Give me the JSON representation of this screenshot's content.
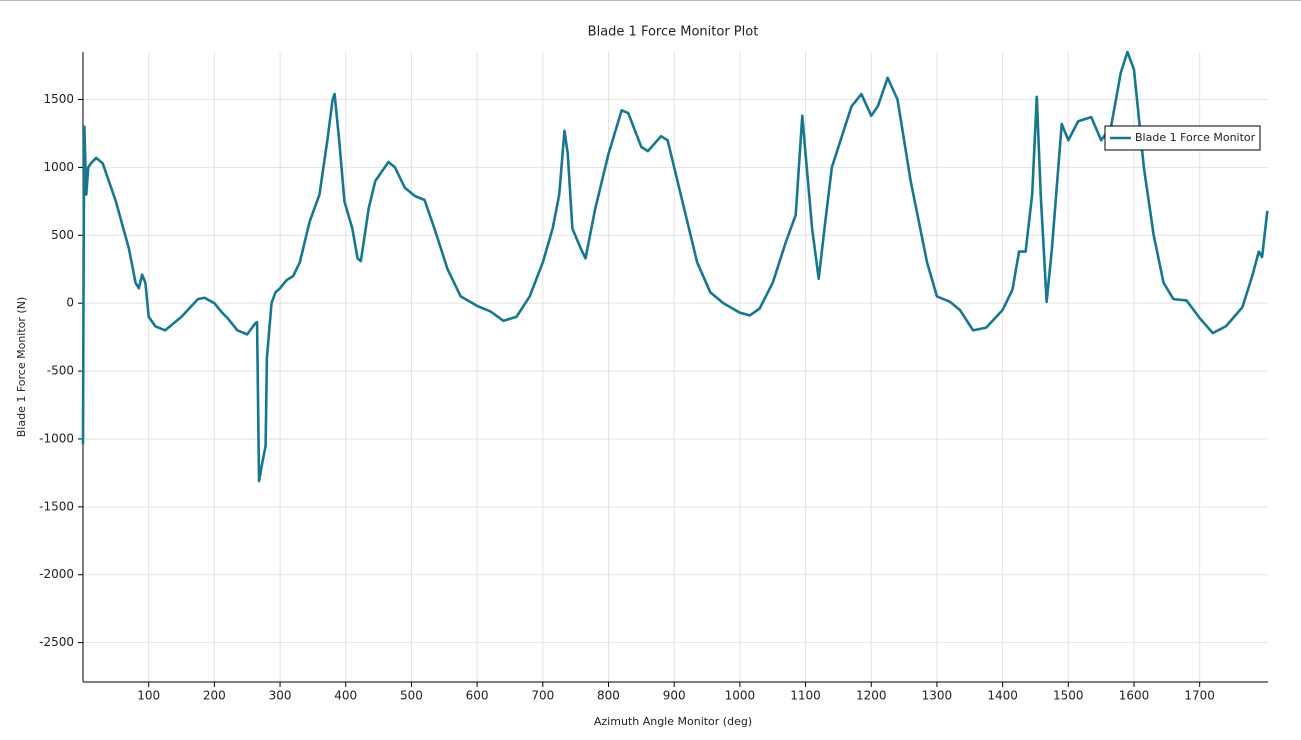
{
  "chart_data": {
    "type": "line",
    "title": "Blade 1 Force Monitor Plot",
    "x_label": "Azimuth Angle Monitor (deg)",
    "y_label": "Blade 1 Force Monitor (N)",
    "x": [
      0,
      1,
      2,
      5,
      8,
      12,
      20,
      30,
      50,
      70,
      80,
      85,
      90,
      95,
      100,
      110,
      125,
      150,
      175,
      185,
      200,
      210,
      220,
      235,
      250,
      262,
      265,
      268,
      272,
      278,
      280,
      287,
      293,
      300,
      310,
      320,
      330,
      345,
      360,
      372,
      380,
      383,
      390,
      398,
      410,
      418,
      423,
      435,
      445,
      465,
      475,
      490,
      505,
      520,
      535,
      555,
      575,
      600,
      620,
      640,
      660,
      680,
      700,
      715,
      725,
      733,
      738,
      745,
      758,
      765,
      780,
      800,
      820,
      830,
      850,
      860,
      880,
      890,
      910,
      935,
      955,
      975,
      1000,
      1015,
      1030,
      1050,
      1070,
      1085,
      1095,
      1100,
      1110,
      1120,
      1130,
      1140,
      1150,
      1170,
      1185,
      1200,
      1210,
      1225,
      1240,
      1260,
      1285,
      1300,
      1320,
      1335,
      1355,
      1375,
      1400,
      1415,
      1425,
      1435,
      1445,
      1452,
      1458,
      1467,
      1475,
      1490,
      1500,
      1515,
      1535,
      1550,
      1565,
      1580,
      1590,
      1600,
      1615,
      1630,
      1645,
      1660,
      1680,
      1700,
      1720,
      1740,
      1765,
      1780,
      1790,
      1795,
      1803
    ],
    "series": [
      {
        "name": "Blade 1 Force Monitor",
        "color": "#16778f",
        "values": [
          -1040,
          440,
          1300,
          800,
          1000,
          1030,
          1070,
          1030,
          750,
          400,
          150,
          110,
          210,
          150,
          -100,
          -170,
          -200,
          -100,
          30,
          40,
          0,
          -60,
          -110,
          -200,
          -230,
          -150,
          -140,
          -1310,
          -1200,
          -1050,
          -400,
          0,
          80,
          110,
          170,
          200,
          300,
          600,
          800,
          1200,
          1500,
          1540,
          1200,
          750,
          550,
          330,
          310,
          700,
          900,
          1040,
          1000,
          850,
          790,
          760,
          550,
          250,
          50,
          -20,
          -60,
          -130,
          -100,
          50,
          300,
          550,
          800,
          1270,
          1100,
          550,
          400,
          330,
          700,
          1100,
          1420,
          1400,
          1150,
          1120,
          1230,
          1200,
          800,
          300,
          80,
          0,
          -70,
          -90,
          -40,
          150,
          450,
          650,
          1380,
          1100,
          550,
          180,
          600,
          1000,
          1150,
          1450,
          1540,
          1380,
          1450,
          1660,
          1500,
          900,
          300,
          50,
          10,
          -50,
          -200,
          -180,
          -50,
          100,
          380,
          380,
          800,
          1520,
          800,
          10,
          400,
          1320,
          1200,
          1340,
          1370,
          1200,
          1300,
          1700,
          1850,
          1720,
          1000,
          500,
          150,
          30,
          20,
          -110,
          -220,
          -170,
          -30,
          200,
          380,
          340,
          680
        ]
      }
    ],
    "xlim": [
      0,
      1804
    ],
    "ylim": [
      -2790,
      1850
    ],
    "xticks": [
      100,
      200,
      300,
      400,
      500,
      600,
      700,
      800,
      900,
      1000,
      1100,
      1200,
      1300,
      1400,
      1500,
      1600,
      1700
    ],
    "yticks": [
      -2500,
      -2000,
      -1500,
      -1000,
      -500,
      0,
      500,
      1000,
      1500
    ],
    "grid": true,
    "legend": "top-right"
  }
}
